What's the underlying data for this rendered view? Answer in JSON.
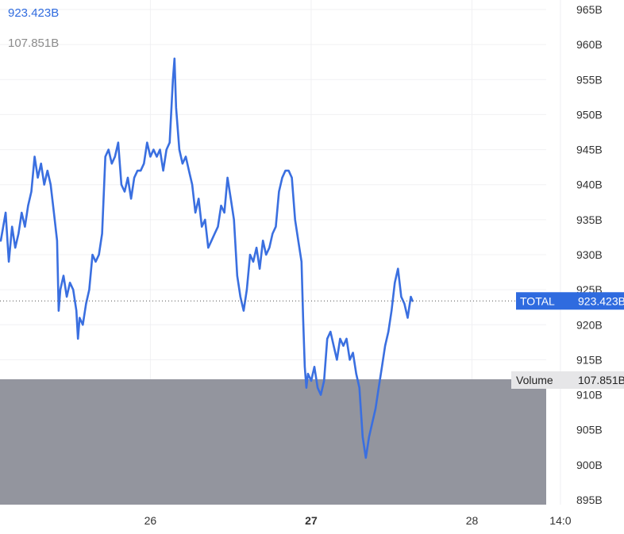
{
  "legend": {
    "total_value": "923.423B",
    "volume_value": "107.851B"
  },
  "colors": {
    "line": "#3a6fe0",
    "volume_fill": "#93959e",
    "tag_bg": "#2f6bdf",
    "volume_tag_bg": "#e6e6e8",
    "grid": "#f0f0f3",
    "label": "#333333",
    "muted": "#8c8c8c"
  },
  "chart_data": {
    "type": "line",
    "title": "",
    "xlabel": "",
    "ylabel": "",
    "y_unit": "B",
    "ylim": [
      893,
      966
    ],
    "y_ticks": [
      "965B",
      "960B",
      "955B",
      "950B",
      "945B",
      "940B",
      "935B",
      "930B",
      "925B",
      "920B",
      "915B",
      "910B",
      "905B",
      "900B",
      "895B"
    ],
    "x_tick_labels": [
      {
        "label": "26",
        "x": 1.0,
        "bold": false
      },
      {
        "label": "27",
        "x": 2.0,
        "bold": true
      },
      {
        "label": "28",
        "x": 3.0,
        "bold": false
      },
      {
        "label": "14:0",
        "x": 3.55,
        "bold": false
      }
    ],
    "x_range": [
      0.065,
      3.58
    ],
    "grid": true,
    "series": [
      {
        "name": "TOTAL",
        "last_value_label": "923.423B",
        "points": [
          [
            0.07,
            932
          ],
          [
            0.1,
            936
          ],
          [
            0.12,
            929
          ],
          [
            0.14,
            934
          ],
          [
            0.16,
            931
          ],
          [
            0.18,
            933
          ],
          [
            0.2,
            936
          ],
          [
            0.22,
            934
          ],
          [
            0.24,
            937
          ],
          [
            0.26,
            939
          ],
          [
            0.28,
            944
          ],
          [
            0.3,
            941
          ],
          [
            0.32,
            943
          ],
          [
            0.34,
            940
          ],
          [
            0.36,
            942
          ],
          [
            0.38,
            940
          ],
          [
            0.4,
            936
          ],
          [
            0.42,
            932
          ],
          [
            0.43,
            922
          ],
          [
            0.44,
            925
          ],
          [
            0.46,
            927
          ],
          [
            0.48,
            924
          ],
          [
            0.5,
            926
          ],
          [
            0.52,
            925
          ],
          [
            0.54,
            922
          ],
          [
            0.55,
            918
          ],
          [
            0.56,
            921
          ],
          [
            0.58,
            920
          ],
          [
            0.6,
            923
          ],
          [
            0.62,
            925
          ],
          [
            0.64,
            930
          ],
          [
            0.66,
            929
          ],
          [
            0.68,
            930
          ],
          [
            0.7,
            933
          ],
          [
            0.72,
            944
          ],
          [
            0.74,
            945
          ],
          [
            0.76,
            943
          ],
          [
            0.78,
            944
          ],
          [
            0.8,
            946
          ],
          [
            0.81,
            943
          ],
          [
            0.82,
            940
          ],
          [
            0.84,
            939
          ],
          [
            0.86,
            941
          ],
          [
            0.88,
            938
          ],
          [
            0.9,
            941
          ],
          [
            0.92,
            942
          ],
          [
            0.94,
            942
          ],
          [
            0.96,
            943
          ],
          [
            0.98,
            946
          ],
          [
            1.0,
            944
          ],
          [
            1.02,
            945
          ],
          [
            1.04,
            944
          ],
          [
            1.06,
            945
          ],
          [
            1.08,
            942
          ],
          [
            1.1,
            945
          ],
          [
            1.12,
            946
          ],
          [
            1.14,
            955
          ],
          [
            1.15,
            958
          ],
          [
            1.16,
            951
          ],
          [
            1.18,
            945
          ],
          [
            1.2,
            943
          ],
          [
            1.22,
            944
          ],
          [
            1.24,
            942
          ],
          [
            1.26,
            940
          ],
          [
            1.28,
            936
          ],
          [
            1.3,
            938
          ],
          [
            1.32,
            934
          ],
          [
            1.34,
            935
          ],
          [
            1.36,
            931
          ],
          [
            1.38,
            932
          ],
          [
            1.4,
            933
          ],
          [
            1.42,
            934
          ],
          [
            1.44,
            937
          ],
          [
            1.46,
            936
          ],
          [
            1.48,
            941
          ],
          [
            1.5,
            938
          ],
          [
            1.52,
            935
          ],
          [
            1.54,
            927
          ],
          [
            1.56,
            924
          ],
          [
            1.58,
            922
          ],
          [
            1.6,
            925
          ],
          [
            1.62,
            930
          ],
          [
            1.64,
            929
          ],
          [
            1.66,
            931
          ],
          [
            1.68,
            928
          ],
          [
            1.7,
            932
          ],
          [
            1.72,
            930
          ],
          [
            1.74,
            931
          ],
          [
            1.76,
            933
          ],
          [
            1.78,
            934
          ],
          [
            1.8,
            939
          ],
          [
            1.82,
            941
          ],
          [
            1.84,
            942
          ],
          [
            1.86,
            942
          ],
          [
            1.88,
            941
          ],
          [
            1.9,
            935
          ],
          [
            1.92,
            932
          ],
          [
            1.94,
            929
          ],
          [
            1.95,
            921
          ],
          [
            1.96,
            914
          ],
          [
            1.97,
            911
          ],
          [
            1.98,
            913
          ],
          [
            2.0,
            912
          ],
          [
            2.02,
            914
          ],
          [
            2.04,
            911
          ],
          [
            2.06,
            910
          ],
          [
            2.08,
            912
          ],
          [
            2.1,
            918
          ],
          [
            2.12,
            919
          ],
          [
            2.14,
            917
          ],
          [
            2.16,
            915
          ],
          [
            2.18,
            918
          ],
          [
            2.2,
            917
          ],
          [
            2.22,
            918
          ],
          [
            2.24,
            915
          ],
          [
            2.26,
            916
          ],
          [
            2.28,
            913
          ],
          [
            2.3,
            911
          ],
          [
            2.32,
            904
          ],
          [
            2.34,
            901
          ],
          [
            2.36,
            904
          ],
          [
            2.38,
            906
          ],
          [
            2.4,
            908
          ],
          [
            2.42,
            911
          ],
          [
            2.44,
            914
          ],
          [
            2.46,
            917
          ],
          [
            2.48,
            919
          ],
          [
            2.5,
            922
          ],
          [
            2.52,
            926
          ],
          [
            2.54,
            928
          ],
          [
            2.56,
            924
          ],
          [
            2.58,
            923
          ],
          [
            2.6,
            921
          ],
          [
            2.62,
            924
          ],
          [
            2.63,
            923.4
          ]
        ]
      },
      {
        "name": "Volume",
        "last_value_label": "107.851B",
        "type": "area",
        "value": 107.851
      }
    ]
  }
}
